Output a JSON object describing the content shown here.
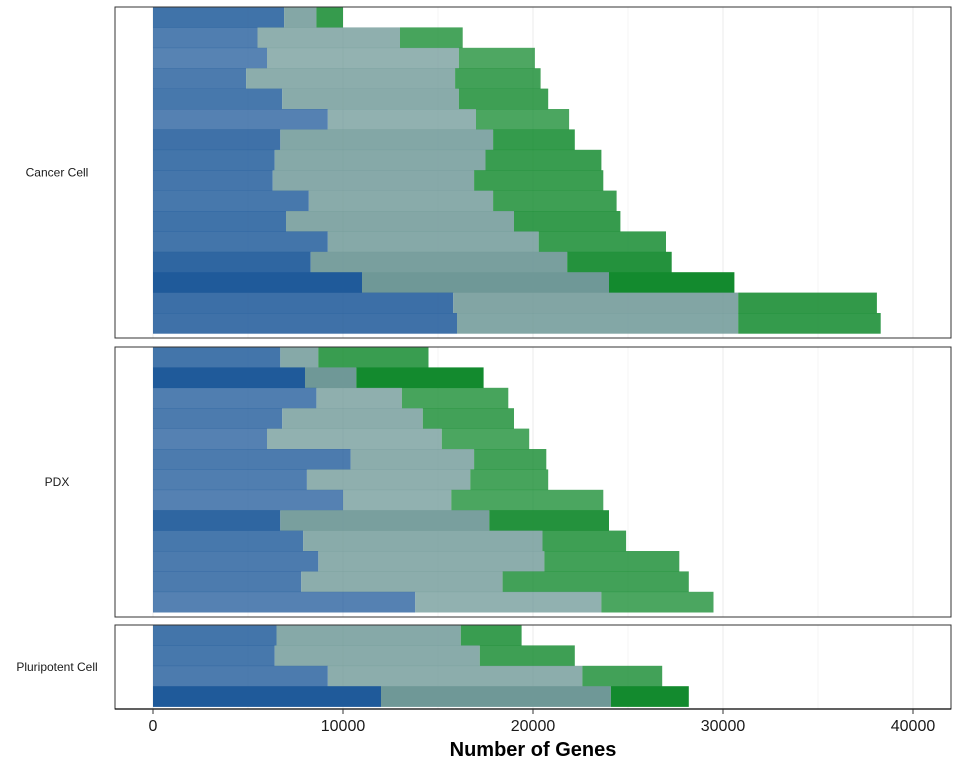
{
  "chart_data": {
    "type": "bar",
    "orientation": "horizontal",
    "stacked": true,
    "xlabel": "Number of Genes",
    "xlim": [
      -2000,
      42000
    ],
    "xticks": [
      0,
      10000,
      20000,
      30000,
      40000
    ],
    "xtick_labels": [
      "0",
      "10000",
      "20000",
      "30000",
      "40000"
    ],
    "grid": "vertical minor and major, light grey",
    "colors": {
      "segment1": "#1f5a9a",
      "segment2": "#6f9897",
      "segment3": "#138a2e"
    },
    "facets": [
      {
        "name": "Cancer Cell",
        "bars": [
          {
            "values": [
              6900,
              1700,
              1400
            ],
            "alpha": 0.85
          },
          {
            "values": [
              5500,
              7500,
              3300
            ],
            "alpha": 0.78
          },
          {
            "values": [
              6000,
              10100,
              4000
            ],
            "alpha": 0.75
          },
          {
            "values": [
              4900,
              11000,
              4500
            ],
            "alpha": 0.8
          },
          {
            "values": [
              6800,
              9300,
              4700
            ],
            "alpha": 0.82
          },
          {
            "values": [
              9200,
              7800,
              4900
            ],
            "alpha": 0.76
          },
          {
            "values": [
              6700,
              11200,
              4300
            ],
            "alpha": 0.86
          },
          {
            "values": [
              6400,
              11100,
              6100
            ],
            "alpha": 0.84
          },
          {
            "values": [
              6300,
              10600,
              6800
            ],
            "alpha": 0.83
          },
          {
            "values": [
              8200,
              9700,
              6500
            ],
            "alpha": 0.82
          },
          {
            "values": [
              7000,
              12000,
              5600
            ],
            "alpha": 0.85
          },
          {
            "values": [
              9200,
              11100,
              6700
            ],
            "alpha": 0.84
          },
          {
            "values": [
              8300,
              13500,
              5500
            ],
            "alpha": 0.93
          },
          {
            "values": [
              11000,
              13000,
              6600
            ],
            "alpha": 1.0
          },
          {
            "values": [
              15800,
              15000,
              7300
            ],
            "alpha": 0.87
          },
          {
            "values": [
              16000,
              14800,
              7500
            ],
            "alpha": 0.86
          }
        ]
      },
      {
        "name": "PDX",
        "bars": [
          {
            "values": [
              6700,
              2000,
              5800
            ],
            "alpha": 0.84
          },
          {
            "values": [
              8000,
              2700,
              6700
            ],
            "alpha": 1.0
          },
          {
            "values": [
              8600,
              4500,
              5600
            ],
            "alpha": 0.78
          },
          {
            "values": [
              6800,
              7400,
              4800
            ],
            "alpha": 0.8
          },
          {
            "values": [
              6000,
              9200,
              4600
            ],
            "alpha": 0.76
          },
          {
            "values": [
              10400,
              6500,
              3800
            ],
            "alpha": 0.8
          },
          {
            "values": [
              8100,
              8600,
              4100
            ],
            "alpha": 0.78
          },
          {
            "values": [
              10000,
              5700,
              8000
            ],
            "alpha": 0.76
          },
          {
            "values": [
              6700,
              11000,
              6300
            ],
            "alpha": 0.93
          },
          {
            "values": [
              7900,
              12600,
              4400
            ],
            "alpha": 0.82
          },
          {
            "values": [
              8700,
              11900,
              7100
            ],
            "alpha": 0.8
          },
          {
            "values": [
              7800,
              10600,
              9800
            ],
            "alpha": 0.8
          },
          {
            "values": [
              13800,
              9800,
              5900
            ],
            "alpha": 0.76
          }
        ]
      },
      {
        "name": "Pluripotent Cell",
        "bars": [
          {
            "values": [
              6500,
              9700,
              3200
            ],
            "alpha": 0.84
          },
          {
            "values": [
              6400,
              10800,
              5000
            ],
            "alpha": 0.82
          },
          {
            "values": [
              9200,
              13400,
              4200
            ],
            "alpha": 0.8
          },
          {
            "values": [
              12000,
              12100,
              4100
            ],
            "alpha": 1.0
          }
        ]
      }
    ]
  }
}
